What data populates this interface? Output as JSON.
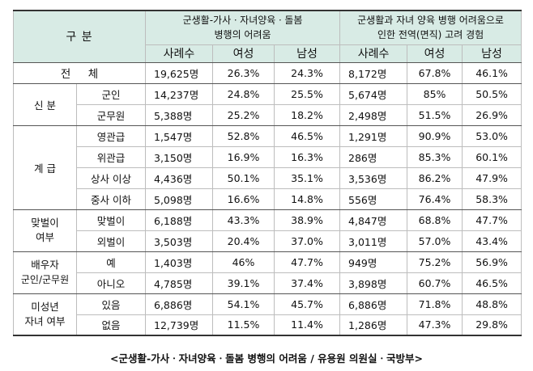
{
  "header": {
    "category": "구     분",
    "group1": "군생활-가사ㆍ자녀양육ㆍ돌봄\n병행의 어려움",
    "group1_line1": "군생활-가사ㆍ자녀양육ㆍ돌봄",
    "group1_line2": "병행의 어려움",
    "group2_line1": "군생활과 자녀 양육 병행 어려움으로",
    "group2_line2": "인한 전역(면직) 고려 경험",
    "cols": [
      "사례수",
      "여성",
      "남성",
      "사례수",
      "여성",
      "남성"
    ]
  },
  "rows": [
    {
      "cat": "전     체",
      "sub": "",
      "v": [
        "19,625명",
        "26.3%",
        "24.3%",
        "8,172명",
        "67.8%",
        "46.1%"
      ]
    },
    {
      "cat": "신 분",
      "sub": "군인",
      "v": [
        "14,237명",
        "24.8%",
        "25.5%",
        "5,674명",
        "85%",
        "50.5%"
      ]
    },
    {
      "cat": "",
      "sub": "군무원",
      "v": [
        "5,388명",
        "25.2%",
        "18.2%",
        "2,498명",
        "51.5%",
        "26.9%"
      ]
    },
    {
      "cat": "계 급",
      "sub": "영관급",
      "v": [
        "1,547명",
        "52.8%",
        "46.5%",
        "1,291명",
        "90.9%",
        "53.0%"
      ]
    },
    {
      "cat": "",
      "sub": "위관급",
      "v": [
        "3,150명",
        "16.9%",
        "16.3%",
        "286명",
        "85.3%",
        "60.1%"
      ]
    },
    {
      "cat": "",
      "sub": "상사 이상",
      "v": [
        "4,436명",
        "50.1%",
        "35.1%",
        "3,536명",
        "86.2%",
        "47.9%"
      ]
    },
    {
      "cat": "",
      "sub": "중사 이하",
      "v": [
        "5,098명",
        "16.6%",
        "14.8%",
        "556명",
        "76.4%",
        "58.3%"
      ]
    },
    {
      "cat_line1": "맞벌이",
      "cat_line2": "여부",
      "sub": "맞벌이",
      "v": [
        "6,188명",
        "43.3%",
        "38.9%",
        "4,847명",
        "68.8%",
        "47.7%"
      ]
    },
    {
      "cat": "",
      "sub": "외벌이",
      "v": [
        "3,503명",
        "20.4%",
        "37.0%",
        "3,011명",
        "57.0%",
        "43.4%"
      ]
    },
    {
      "cat_line1": "배우자",
      "cat_line2": "군인/군무원",
      "sub": "예",
      "v": [
        "1,403명",
        "46%",
        "47.7%",
        "949명",
        "75.2%",
        "56.9%"
      ]
    },
    {
      "cat": "",
      "sub": "아니오",
      "v": [
        "4,785명",
        "39.1%",
        "37.4%",
        "3,898명",
        "60.7%",
        "46.5%"
      ]
    },
    {
      "cat_line1": "미성년",
      "cat_line2": "자녀 여부",
      "sub": "있음",
      "v": [
        "6,886명",
        "54.1%",
        "45.7%",
        "6,886명",
        "71.8%",
        "48.8%"
      ]
    },
    {
      "cat": "",
      "sub": "없음",
      "v": [
        "12,739명",
        "11.5%",
        "11.4%",
        "1,286명",
        "47.3%",
        "29.8%"
      ]
    }
  ],
  "caption": "<군생활-가사ㆍ자녀양육ㆍ돌봄 병행의 어려움 / 유용원 의원실ㆍ국방부>"
}
